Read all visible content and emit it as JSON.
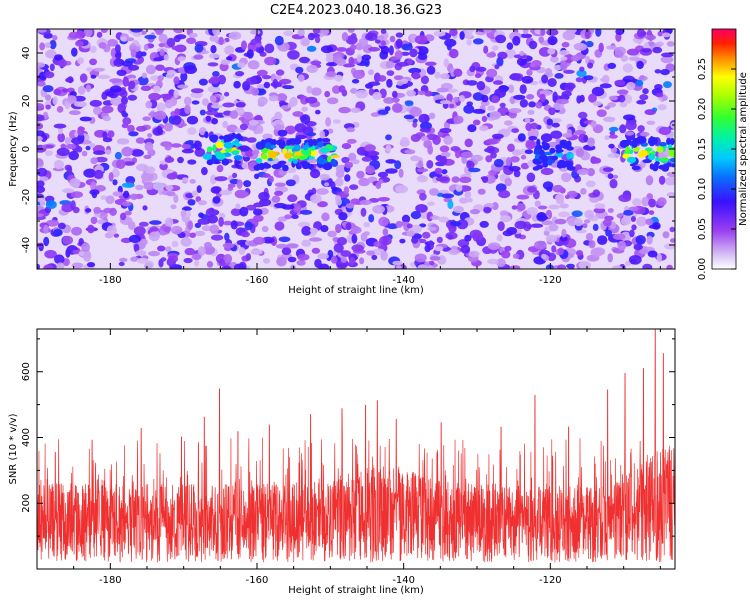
{
  "figure": {
    "title": "C2E4.2023.040.18.36.G23"
  },
  "chart_data": [
    {
      "type": "heatmap",
      "xlabel": "Height of straight line (km)",
      "ylabel": "Frequency (Hz)",
      "xlim": [
        -190,
        -103
      ],
      "ylim": [
        -50,
        50
      ],
      "xticks": [
        -180,
        -160,
        -140,
        -120
      ],
      "yticks": [
        -40,
        -20,
        0,
        20,
        40
      ],
      "colorbar": {
        "label": "Normalized spectral amplitude",
        "range": [
          0,
          0.3
        ],
        "ticks": [
          "0.00",
          "0.05",
          "0.10",
          "0.15",
          "0.20",
          "0.25"
        ],
        "colors": [
          "#ffffff",
          "#c9a8f0",
          "#8a2be2",
          "#3a00ff",
          "#00b4ff",
          "#00e6b4",
          "#33ff33",
          "#c8ff00",
          "#ffff00",
          "#ff8800",
          "#ff0000",
          "#ff0066"
        ]
      },
      "grid": false,
      "bright_bands": [
        {
          "x_from": -167,
          "x_to": -162,
          "freq": 0,
          "peak": 0.28
        },
        {
          "x_from": -160,
          "x_to": -149,
          "freq": -2,
          "peak": 0.27
        },
        {
          "x_from": -122,
          "x_to": -117,
          "freq": -3,
          "peak": 0.15
        },
        {
          "x_from": -110,
          "x_to": -103,
          "freq": -2,
          "peak": 0.27
        }
      ]
    },
    {
      "type": "line",
      "xlabel": "Height of straight line (km)",
      "ylabel": "SNR (10 * v/v)",
      "xlim": [
        -190,
        -103
      ],
      "ylim": [
        0,
        730
      ],
      "xticks": [
        -180,
        -160,
        -140,
        -120
      ],
      "yticks": [
        200,
        400,
        600
      ],
      "color": "#f03030",
      "baseline_min": 20,
      "baseline_max": 260,
      "spikes": [
        {
          "x": -187.5,
          "y": 355
        },
        {
          "x": -182.5,
          "y": 392
        },
        {
          "x": -175.8,
          "y": 428
        },
        {
          "x": -170.3,
          "y": 402
        },
        {
          "x": -167.2,
          "y": 462
        },
        {
          "x": -165.1,
          "y": 548
        },
        {
          "x": -162.6,
          "y": 418
        },
        {
          "x": -158.3,
          "y": 438
        },
        {
          "x": -152.7,
          "y": 470
        },
        {
          "x": -148.4,
          "y": 488
        },
        {
          "x": -145.2,
          "y": 498
        },
        {
          "x": -143.6,
          "y": 512
        },
        {
          "x": -141.0,
          "y": 455
        },
        {
          "x": -134.9,
          "y": 445
        },
        {
          "x": -126.7,
          "y": 432
        },
        {
          "x": -122.1,
          "y": 528
        },
        {
          "x": -117.5,
          "y": 432
        },
        {
          "x": -112.2,
          "y": 545
        },
        {
          "x": -109.8,
          "y": 595
        },
        {
          "x": -107.3,
          "y": 610
        },
        {
          "x": -105.7,
          "y": 728
        },
        {
          "x": -104.6,
          "y": 655
        }
      ]
    }
  ]
}
